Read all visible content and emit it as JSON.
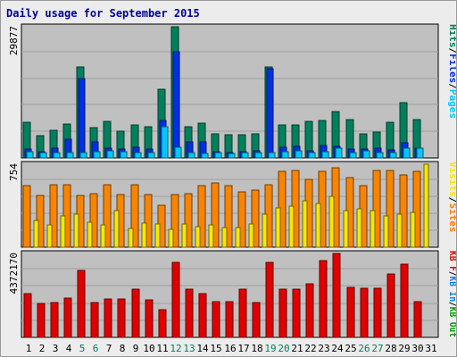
{
  "title": "Daily usage for September 2015",
  "chart_data": {
    "type": "bar",
    "title": "Daily usage for September 2015",
    "categories": [
      "1",
      "2",
      "3",
      "4",
      "5",
      "6",
      "7",
      "8",
      "9",
      "10",
      "11",
      "12",
      "13",
      "14",
      "15",
      "16",
      "17",
      "18",
      "19",
      "20",
      "21",
      "22",
      "23",
      "24",
      "25",
      "26",
      "27",
      "28",
      "29",
      "30",
      "31"
    ],
    "weekend_days": [
      "5",
      "6",
      "12",
      "13",
      "19",
      "20",
      "26",
      "27"
    ],
    "colors": {
      "hits": "#00805c",
      "files": "#0030e0",
      "pages": "#00c8f8",
      "visits": "#f8e800",
      "sites": "#f88400",
      "kb_in": "#0080ff",
      "kb_out": "#00a000",
      "kb_f": "#e00000",
      "weekend_label": "#00805c",
      "weekday_label": "#000000",
      "panel": "#c0c0c0",
      "title": "#0000a0"
    },
    "panels": [
      {
        "name": "top",
        "axis_max_label": "29877",
        "ymax": 29877,
        "legend": [
          {
            "text": "Hits",
            "color": "#00805c"
          },
          {
            "text": "/",
            "color": "#000000"
          },
          {
            "text": "Files",
            "color": "#0030e0"
          },
          {
            "text": "/",
            "color": "#000000"
          },
          {
            "text": "Pages",
            "color": "#00c8f8"
          }
        ],
        "series": [
          {
            "name": "Hits",
            "color": "#00805c",
            "values": [
              8200,
              5100,
              6300,
              7800,
              20800,
              7000,
              8400,
              6000,
              7500,
              7200,
              15600,
              29877,
              7200,
              8000,
              5500,
              5300,
              5200,
              5400,
              20700,
              7600,
              7600,
              8400,
              8600,
              10600,
              8700,
              5500,
              5900,
              8100,
              12600,
              8700,
              0
            ]
          },
          {
            "name": "Files",
            "color": "#0030e0",
            "values": [
              2000,
              1500,
              2300,
              4200,
              18000,
              3600,
              2200,
              2100,
              2500,
              2100,
              8600,
              24200,
              3600,
              3600,
              1500,
              1200,
              1400,
              1600,
              20400,
              2500,
              2600,
              1600,
              2900,
              2700,
              2100,
              2000,
              2200,
              1900,
              3400,
              2200,
              0
            ]
          },
          {
            "name": "Pages",
            "color": "#00c8f8",
            "values": [
              1500,
              1200,
              1200,
              1300,
              1200,
              1500,
              1700,
              1400,
              1200,
              1200,
              7200,
              2400,
              1300,
              1100,
              1200,
              1100,
              1200,
              1200,
              1200,
              1400,
              1600,
              1300,
              1500,
              2300,
              1300,
              1600,
              1300,
              1200,
              2300,
              2300,
              0
            ]
          }
        ]
      },
      {
        "name": "middle",
        "axis_max_label": "754",
        "ymax": 754,
        "legend": [
          {
            "text": "Visits",
            "color": "#f8e800"
          },
          {
            "text": "/",
            "color": "#000000"
          },
          {
            "text": "Sites",
            "color": "#f88400"
          }
        ],
        "series": [
          {
            "name": "Sites",
            "color": "#f88400",
            "values": [
              560,
              470,
              570,
              570,
              470,
              490,
              570,
              480,
              570,
              480,
              380,
              480,
              490,
              560,
              580,
              560,
              500,
              520,
              570,
              690,
              700,
              620,
              690,
              720,
              630,
              560,
              700,
              700,
              660,
              690,
              0
            ]
          },
          {
            "name": "Visits",
            "color": "#f8e800",
            "values": [
              240,
              200,
              280,
              300,
              230,
              200,
              330,
              170,
              220,
              210,
              160,
              210,
              190,
              200,
              180,
              180,
              210,
              300,
              360,
              370,
              420,
              400,
              460,
              330,
              350,
              330,
              280,
              300,
              320,
              754,
              0
            ]
          }
        ]
      },
      {
        "name": "bottom",
        "axis_max_label": "4372170",
        "ymax": 4372170,
        "legend": [
          {
            "text": "KB F",
            "color": "#e00000"
          },
          {
            "text": "/",
            "color": "#000000"
          },
          {
            "text": "KB In",
            "color": "#0080ff"
          },
          {
            "text": "/",
            "color": "#000000"
          },
          {
            "text": "KB Out",
            "color": "#00a000"
          }
        ],
        "series": [
          {
            "name": "KB F",
            "color": "#e00000",
            "values": [
              2300000,
              1750000,
              1800000,
              2050000,
              3500000,
              1800000,
              2000000,
              2000000,
              2500000,
              1950000,
              1450000,
              3900000,
              2500000,
              2300000,
              1850000,
              1850000,
              2500000,
              1800000,
              3900000,
              2500000,
              2500000,
              2800000,
              4020000,
              4372170,
              2600000,
              2550000,
              2550000,
              3280000,
              3800000,
              1850000,
              0
            ]
          }
        ]
      }
    ]
  }
}
